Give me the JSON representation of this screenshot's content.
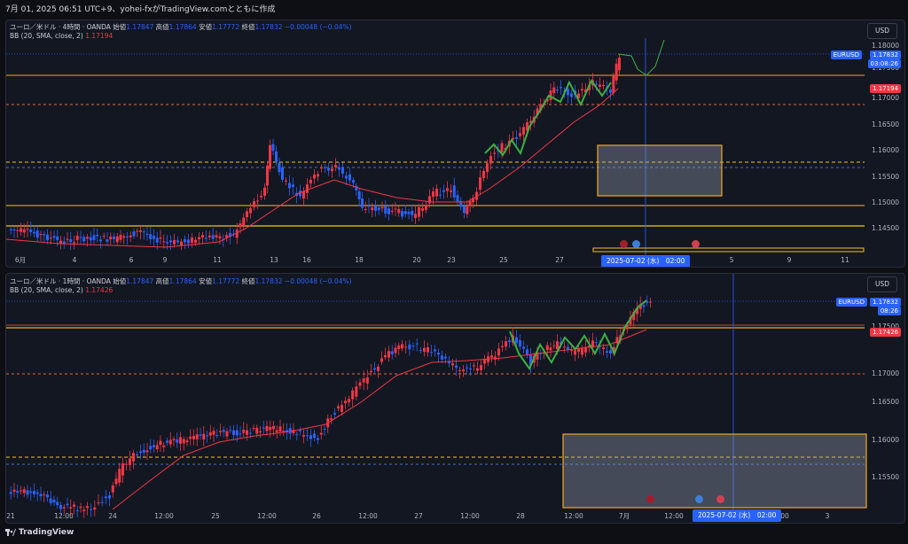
{
  "header": {
    "text": "7月 01, 2025 06:51 UTC+9、yohei-fxがTradingView.comとともに作成"
  },
  "colors": {
    "up": "#f23645",
    "down": "#2962ff",
    "bb": "#f23645",
    "yellow": "#f5c518",
    "orange": "#f5a623",
    "green": "#3cb043",
    "blue": "#2962ff"
  },
  "icons": {
    "logo": "tradingview-logo-icon",
    "event": "economic-event-icon",
    "flag": "us-flag-icon"
  },
  "pane1": {
    "symbol": "ユーロ／米ドル · 4時間 · OANDA",
    "open_label": "始値",
    "open": "1.17847",
    "high_label": "高値",
    "high": "1.17864",
    "low_label": "安値",
    "low": "1.17772",
    "close_label": "終値",
    "close": "1.17832",
    "change": "−0.00048 (−0.04%)",
    "bb_label": "BB (20, SMA, close, 2)",
    "bb_value": "1.17194",
    "currency": "USD",
    "ticker": "EURUSD",
    "price": "1.17832",
    "countdown": "03:08:26",
    "bb_tag": "1.17194",
    "price_labels": [
      "1.18000",
      "1.17500",
      "1.17000",
      "1.16500",
      "1.16000",
      "1.15500",
      "1.15000",
      "1.14500"
    ],
    "time_labels": [
      "6月",
      "4",
      "6",
      "9",
      "11",
      "13",
      "16",
      "18",
      "20",
      "23",
      "25",
      "27",
      "5",
      "9",
      "11"
    ],
    "cursor_date": "2025-07-02 (水)　02:00"
  },
  "pane2": {
    "symbol": "ユーロ／米ドル · 1時間 · OANDA",
    "open_label": "始値",
    "open": "1.17847",
    "high_label": "高値",
    "high": "1.17864",
    "low_label": "安値",
    "low": "1.17772",
    "close_label": "終値",
    "close": "1.17832",
    "change": "−0.00048 (−0.04%)",
    "bb_label": "BB (20, SMA, close, 2)",
    "bb_value": "1.17426",
    "currency": "USD",
    "ticker": "EURUSD",
    "price": "1.17832",
    "countdown": "08:26",
    "bb_tag": "1.17426",
    "price_labels": [
      "1.17500",
      "1.17000",
      "1.16500",
      "1.16000",
      "1.15500"
    ],
    "time_labels": [
      "21",
      "12:00",
      "24",
      "12:00",
      "25",
      "12:00",
      "26",
      "12:00",
      "27",
      "12:00",
      "28",
      "12:00",
      "7月",
      "12:00",
      "12:00",
      "3"
    ],
    "cursor_date": "2025-07-02 (水)　02:00"
  },
  "footer": {
    "brand": "TradingView"
  }
}
